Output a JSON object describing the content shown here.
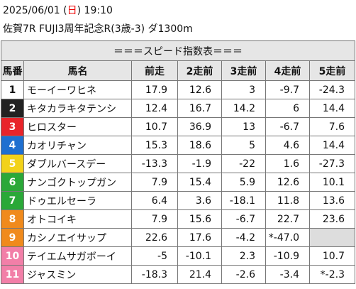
{
  "header": {
    "date": "2025/06/01",
    "paren_open": "(",
    "weekday": "日",
    "paren_close": ")",
    "time": "19:10",
    "race": "佐賀7R FUJI3周年記念R(3歳-3) ダ1300m"
  },
  "table": {
    "caption": "＝＝＝スピード指数表＝＝＝",
    "columns": [
      "馬番",
      "馬名",
      "前走",
      "2走前",
      "3走前",
      "4走前",
      "5走前"
    ],
    "rows": [
      [
        1,
        "モーイーワヒネ",
        17.9,
        12.6,
        3.0,
        -9.7,
        -24.3
      ],
      [
        2,
        "キタカラキタテンシ",
        12.4,
        16.7,
        14.2,
        6.0,
        14.4
      ],
      [
        3,
        "ヒロスター",
        10.7,
        36.9,
        13.0,
        -6.7,
        7.6
      ],
      [
        4,
        "カオリチャン",
        15.3,
        18.6,
        5.0,
        4.6,
        14.4
      ],
      [
        5,
        "ダブルバースデー",
        -13.3,
        -1.9,
        -22.0,
        1.6,
        -27.3
      ],
      [
        6,
        "ナンゴクトップガン",
        7.9,
        15.4,
        5.9,
        12.6,
        10.1
      ],
      [
        7,
        "ドゥエルセーラ",
        6.4,
        3.6,
        -18.1,
        11.8,
        13.6
      ],
      [
        8,
        "オトコイキ",
        7.9,
        15.6,
        -6.7,
        22.7,
        23.6
      ],
      [
        9,
        "カシノエイサップ",
        22.6,
        17.6,
        -4.2,
        "*-47.0",
        null
      ],
      [
        10,
        "テイエムサガボーイ",
        -5.0,
        -10.1,
        2.3,
        -10.9,
        10.7
      ],
      [
        11,
        "ジャスミン",
        -18.3,
        21.4,
        -2.6,
        -3.4,
        "*-2.3"
      ]
    ]
  }
}
